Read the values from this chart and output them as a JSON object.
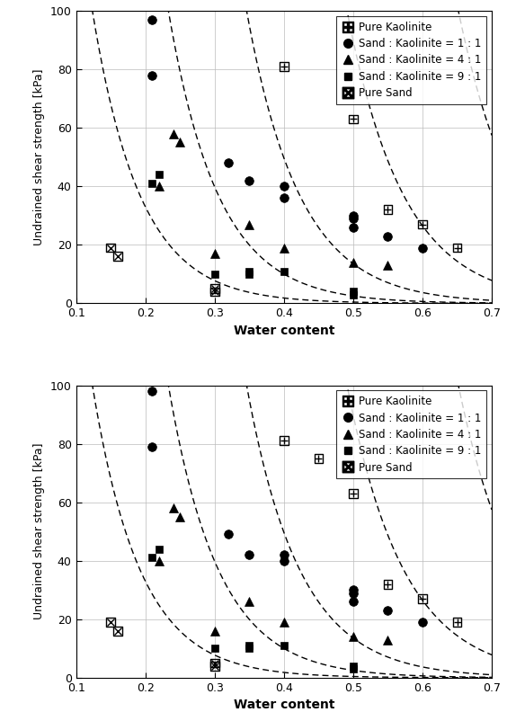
{
  "top": {
    "pure_kaolinite": {
      "x": [
        0.4,
        0.5,
        0.55,
        0.6,
        0.65
      ],
      "y": [
        81,
        63,
        32,
        27,
        19
      ]
    },
    "sand_1_1": {
      "x": [
        0.21,
        0.21,
        0.32,
        0.35,
        0.4,
        0.4,
        0.5,
        0.5,
        0.5,
        0.55,
        0.6
      ],
      "y": [
        78,
        97,
        48,
        42,
        40,
        36,
        30,
        26,
        29,
        23,
        19
      ]
    },
    "sand_4_1": {
      "x": [
        0.22,
        0.24,
        0.25,
        0.3,
        0.35,
        0.4,
        0.5,
        0.55
      ],
      "y": [
        40,
        58,
        55,
        17,
        27,
        19,
        14,
        13
      ]
    },
    "sand_9_1": {
      "x": [
        0.21,
        0.22,
        0.3,
        0.35,
        0.35,
        0.4,
        0.5,
        0.5
      ],
      "y": [
        41,
        44,
        10,
        11,
        10,
        11,
        3,
        4
      ]
    },
    "pure_sand": {
      "x": [
        0.15,
        0.16,
        0.3,
        0.3
      ],
      "y": [
        19,
        16,
        5,
        4
      ]
    }
  },
  "bottom": {
    "pure_kaolinite": {
      "x": [
        0.4,
        0.45,
        0.5,
        0.55,
        0.6,
        0.65
      ],
      "y": [
        81,
        75,
        63,
        32,
        27,
        19
      ]
    },
    "sand_1_1": {
      "x": [
        0.21,
        0.21,
        0.32,
        0.35,
        0.4,
        0.4,
        0.5,
        0.5,
        0.5,
        0.55,
        0.6
      ],
      "y": [
        79,
        98,
        49,
        42,
        40,
        42,
        30,
        26,
        29,
        23,
        19
      ]
    },
    "sand_4_1": {
      "x": [
        0.22,
        0.24,
        0.25,
        0.3,
        0.35,
        0.4,
        0.5,
        0.55
      ],
      "y": [
        40,
        58,
        55,
        16,
        26,
        19,
        14,
        13
      ]
    },
    "sand_9_1": {
      "x": [
        0.21,
        0.22,
        0.3,
        0.35,
        0.35,
        0.4,
        0.5,
        0.5
      ],
      "y": [
        41,
        44,
        10,
        11,
        10,
        11,
        3,
        4
      ]
    },
    "pure_sand": {
      "x": [
        0.15,
        0.16,
        0.3,
        0.3
      ],
      "y": [
        19,
        16,
        5,
        4
      ]
    }
  },
  "curves": [
    [
      600,
      -14.5
    ],
    [
      2500,
      -13.8
    ],
    [
      9000,
      -13.0
    ],
    [
      40000,
      -12.2
    ],
    [
      180000,
      -11.5
    ]
  ],
  "xlim": [
    0.1,
    0.7
  ],
  "ylim": [
    0,
    100
  ],
  "xlabel": "Water content",
  "ylabel": "Undrained shear strength [kPa]",
  "xticks": [
    0.1,
    0.2,
    0.3,
    0.4,
    0.5,
    0.6,
    0.7
  ],
  "yticks": [
    0,
    20,
    40,
    60,
    80,
    100
  ],
  "legend_labels": [
    "Pure Kaolinite",
    "Sand : Kaolinite = 1 : 1",
    "Sand : Kaolinite = 4 : 1",
    "Sand : Kaolinite = 9 : 1",
    "Pure Sand"
  ]
}
